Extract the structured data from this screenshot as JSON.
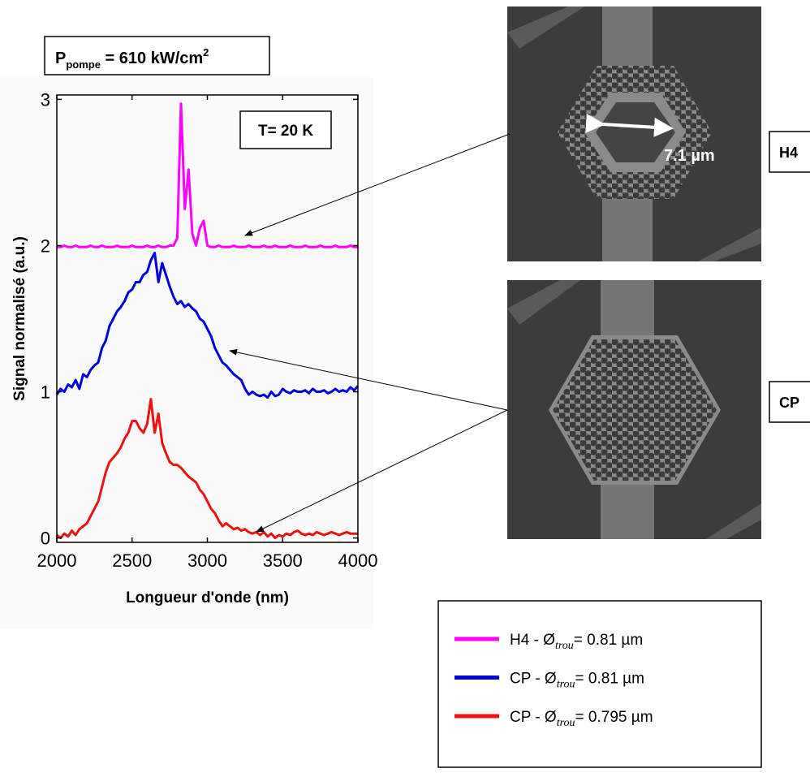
{
  "chart_data": {
    "type": "line",
    "x_label": "Longueur d'onde (nm)",
    "y_label": "Signal normalisé (a.u.)",
    "x": [
      2000,
      2025,
      2050,
      2075,
      2100,
      2125,
      2150,
      2175,
      2200,
      2225,
      2250,
      2275,
      2300,
      2325,
      2350,
      2375,
      2400,
      2425,
      2450,
      2475,
      2500,
      2525,
      2550,
      2575,
      2600,
      2625,
      2650,
      2675,
      2700,
      2725,
      2750,
      2775,
      2800,
      2825,
      2850,
      2875,
      2900,
      2925,
      2950,
      2975,
      3000,
      3025,
      3050,
      3075,
      3100,
      3125,
      3150,
      3175,
      3200,
      3225,
      3250,
      3275,
      3300,
      3325,
      3350,
      3375,
      3400,
      3425,
      3450,
      3475,
      3500,
      3525,
      3550,
      3575,
      3600,
      3625,
      3650,
      3675,
      3700,
      3725,
      3750,
      3775,
      3800,
      3825,
      3850,
      3875,
      3900,
      3925,
      3950,
      3975,
      4000
    ],
    "series": [
      {
        "name": "H4 - Ø",
        "name_subscript": "trou",
        "name_suffix": "= 0.81 µm",
        "color": "#ff00ff",
        "values": [
          1.99,
          1.99,
          2.0,
          1.99,
          1.99,
          2.0,
          1.99,
          1.99,
          1.99,
          2.0,
          1.99,
          1.99,
          2.0,
          1.99,
          1.99,
          1.99,
          2.0,
          1.99,
          1.99,
          1.99,
          2.0,
          1.99,
          1.99,
          1.99,
          2.0,
          1.99,
          1.99,
          2.0,
          1.99,
          1.99,
          2.0,
          2.0,
          2.05,
          2.97,
          2.25,
          2.52,
          2.08,
          2.0,
          2.12,
          2.17,
          2.0,
          1.99,
          1.99,
          2.0,
          1.99,
          1.99,
          1.99,
          2.0,
          1.99,
          1.99,
          1.99,
          2.0,
          1.99,
          1.99,
          1.99,
          2.0,
          1.99,
          1.99,
          2.0,
          1.99,
          1.99,
          1.99,
          2.0,
          1.99,
          1.99,
          1.99,
          2.0,
          1.99,
          1.99,
          1.99,
          2.0,
          1.99,
          1.99,
          1.99,
          2.0,
          1.99,
          1.99,
          1.99,
          2.0,
          1.99,
          1.99
        ]
      },
      {
        "name": "CP - Ø",
        "name_subscript": "trou",
        "name_suffix": "= 0.81 µm",
        "color": "#0000dd",
        "values": [
          0.98,
          1.02,
          1.0,
          1.05,
          1.03,
          1.08,
          1.02,
          1.12,
          1.1,
          1.15,
          1.18,
          1.2,
          1.3,
          1.35,
          1.45,
          1.5,
          1.55,
          1.58,
          1.62,
          1.68,
          1.7,
          1.75,
          1.75,
          1.8,
          1.82,
          1.9,
          1.95,
          1.75,
          1.88,
          1.8,
          1.72,
          1.65,
          1.6,
          1.62,
          1.58,
          1.6,
          1.57,
          1.55,
          1.5,
          1.48,
          1.43,
          1.38,
          1.3,
          1.25,
          1.2,
          1.18,
          1.15,
          1.12,
          1.1,
          1.08,
          1.02,
          0.98,
          1.0,
          0.98,
          0.97,
          0.98,
          0.96,
          1.0,
          0.97,
          0.98,
          1.02,
          1.0,
          0.99,
          1.01,
          1.0,
          1.0,
          1.01,
          0.99,
          1.02,
          1.0,
          1.0,
          1.01,
          0.99,
          1.0,
          1.02,
          1.0,
          1.01,
          1.0,
          1.03,
          1.01,
          1.04
        ]
      },
      {
        "name": "CP - Ø",
        "name_subscript": "trou",
        "name_suffix": "= 0.795 µm",
        "color": "#ee1111",
        "values": [
          0.02,
          0.0,
          0.03,
          0.01,
          0.05,
          0.02,
          0.06,
          0.08,
          0.1,
          0.15,
          0.2,
          0.25,
          0.35,
          0.45,
          0.52,
          0.55,
          0.58,
          0.62,
          0.68,
          0.72,
          0.8,
          0.8,
          0.75,
          0.72,
          0.78,
          0.95,
          0.72,
          0.85,
          0.65,
          0.58,
          0.52,
          0.5,
          0.5,
          0.48,
          0.45,
          0.42,
          0.4,
          0.38,
          0.33,
          0.3,
          0.25,
          0.2,
          0.17,
          0.12,
          0.08,
          0.1,
          0.08,
          0.06,
          0.07,
          0.05,
          0.06,
          0.04,
          0.03,
          0.04,
          0.02,
          0.04,
          0.01,
          0.03,
          0.0,
          0.02,
          0.01,
          0.03,
          0.02,
          0.04,
          0.05,
          0.03,
          0.02,
          0.03,
          0.02,
          0.04,
          0.03,
          0.02,
          0.03,
          0.04,
          0.03,
          0.02,
          0.03,
          0.04,
          0.03,
          0.03,
          0.03
        ]
      }
    ],
    "xlim": [
      2000,
      4000
    ],
    "xticks": [
      2000,
      2500,
      3000,
      3500,
      4000
    ],
    "ylim": [
      -0.03,
      3.03
    ],
    "yticks": [
      0,
      1,
      2,
      3
    ],
    "annotations": {
      "pump": {
        "text": "P",
        "subscript": "pompe",
        "suffix": " = 610 kW/cm",
        "superscript": "2"
      },
      "temperature": "T= 20 K"
    }
  },
  "images": [
    {
      "label": "H4",
      "scale": "7.1 µm"
    },
    {
      "label": "CP"
    }
  ]
}
